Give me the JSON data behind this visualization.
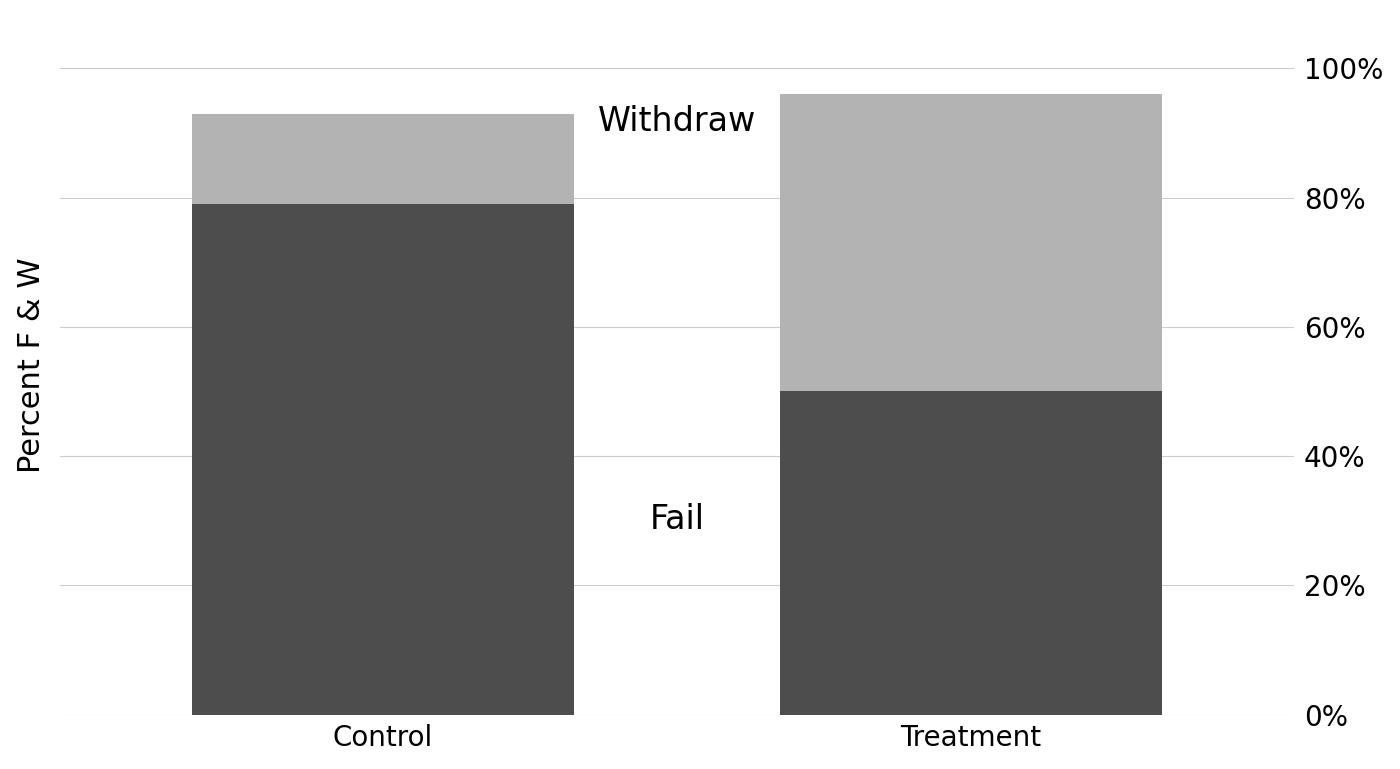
{
  "categories": [
    "Control",
    "Treatment"
  ],
  "fail_values": [
    0.79,
    0.5
  ],
  "withdraw_values": [
    0.14,
    0.46
  ],
  "fail_color": "#4d4d4d",
  "withdraw_color": "#b3b3b3",
  "ylabel": "Percent F & W",
  "yticks": [
    0.0,
    0.2,
    0.4,
    0.6,
    0.8,
    1.0
  ],
  "ytick_labels": [
    "0%",
    "20%",
    "40%",
    "60%",
    "80%",
    "100%"
  ],
  "fail_label": "Fail",
  "withdraw_label": "Withdraw",
  "bar_width": 0.65,
  "x_positions": [
    0,
    1
  ],
  "xlim": [
    -0.55,
    1.55
  ],
  "ylim": [
    0,
    1.08
  ],
  "background_color": "#ffffff",
  "ylabel_fontsize": 22,
  "tick_fontsize": 20,
  "annotation_fontsize": 24,
  "grid_color": "#cccccc",
  "grid_linewidth": 0.8
}
